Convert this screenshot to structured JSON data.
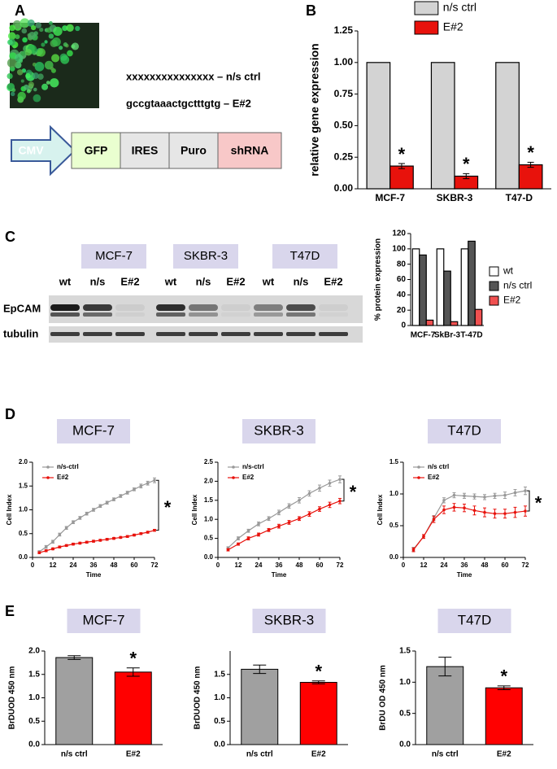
{
  "panel_labels": [
    "A",
    "B",
    "C",
    "D",
    "E"
  ],
  "construct": {
    "sequences": [
      "xxxxxxxxxxxxxxx – n/s ctrl",
      "gccgtaaactgctttgtg – E#2"
    ],
    "elements": [
      "CMV",
      "GFP",
      "IRES",
      "Puro",
      "shRNA"
    ]
  },
  "blot": {
    "cell_lines": [
      "MCF-7",
      "SKBR-3",
      "T47D"
    ],
    "lanes": [
      "wt",
      "n/s",
      "E#2"
    ],
    "proteins": [
      "EpCAM",
      "tubulin"
    ]
  },
  "chart_data": [
    {
      "type": "bar",
      "ylabel": "relative gene expression",
      "categories": [
        "MCF-7",
        "SKBR-3",
        "T47-D"
      ],
      "series": [
        {
          "name": "n/s ctrl",
          "color": "#d3d3d3",
          "values": [
            1,
            1,
            1
          ]
        },
        {
          "name": "E#2",
          "color": "#e8120c",
          "values": [
            0.18,
            0.1,
            0.19
          ],
          "errors": [
            0.02,
            0.02,
            0.02
          ]
        }
      ],
      "ylim": [
        0,
        1.25
      ],
      "yticks": [
        {
          "value": 0,
          "label": "0.00"
        },
        {
          "value": 0.25,
          "label": "0.25"
        },
        {
          "value": 0.5,
          "label": "0.50"
        },
        {
          "value": 0.75,
          "label": "0.75"
        },
        {
          "value": 1,
          "label": "1.00"
        },
        {
          "value": 1.25,
          "label": "1.25"
        }
      ],
      "legend": "top",
      "annotation": "*"
    },
    {
      "type": "bar",
      "ylabel": "% protein expression",
      "categories": [
        "MCF-7",
        "SkBr-3",
        "T-47D"
      ],
      "series": [
        {
          "name": "wt",
          "color": "#ffffff",
          "values": [
            100,
            100,
            100
          ]
        },
        {
          "name": "n/s ctrl",
          "color": "#555555",
          "values": [
            92,
            71,
            110
          ]
        },
        {
          "name": "E#2",
          "color": "#f05050",
          "values": [
            7,
            5,
            21
          ]
        }
      ],
      "ylim": [
        0,
        120
      ],
      "yticks": [
        0,
        20,
        40,
        60,
        80,
        100,
        120
      ],
      "legend": "right"
    },
    {
      "type": "line",
      "title": "MCF-7",
      "xlabel": "Time",
      "ylabel": "Cell Index",
      "x": [
        4,
        8,
        12,
        16,
        20,
        24,
        28,
        32,
        36,
        40,
        44,
        48,
        52,
        56,
        60,
        64,
        68,
        72
      ],
      "series": [
        {
          "name": "n/s-ctrl",
          "color": "#999999",
          "values": [
            0.12,
            0.22,
            0.33,
            0.48,
            0.62,
            0.74,
            0.83,
            0.92,
            1.0,
            1.08,
            1.15,
            1.22,
            1.29,
            1.36,
            1.43,
            1.5,
            1.56,
            1.62
          ],
          "errors": [
            0.02,
            0.03,
            0.03,
            0.03,
            0.03,
            0.03,
            0.03,
            0.03,
            0.03,
            0.03,
            0.03,
            0.03,
            0.03,
            0.03,
            0.03,
            0.04,
            0.04,
            0.05
          ]
        },
        {
          "name": "E#2",
          "color": "#e8120c",
          "values": [
            0.1,
            0.14,
            0.18,
            0.22,
            0.25,
            0.28,
            0.3,
            0.32,
            0.34,
            0.36,
            0.38,
            0.4,
            0.42,
            0.44,
            0.47,
            0.5,
            0.53,
            0.57
          ],
          "errors": [
            0.02,
            0.02,
            0.02,
            0.02,
            0.02,
            0.02,
            0.02,
            0.02,
            0.02,
            0.02,
            0.02,
            0.02,
            0.02,
            0.02,
            0.02,
            0.02,
            0.02,
            0.02
          ]
        }
      ],
      "xlim": [
        0,
        72
      ],
      "xticks": [
        0,
        12,
        24,
        36,
        48,
        60,
        72
      ],
      "ylim": [
        0,
        2
      ],
      "yticks": [
        {
          "value": 0,
          "label": "0.0"
        },
        {
          "value": 0.5,
          "label": "0.5"
        },
        {
          "value": 1,
          "label": "1.0"
        },
        {
          "value": 1.5,
          "label": "1.5"
        },
        {
          "value": 2,
          "label": "2.0"
        }
      ],
      "legend": "upper left",
      "annotation": "*"
    },
    {
      "type": "line",
      "title": "SKBR-3",
      "xlabel": "Time",
      "ylabel": "Cell Index",
      "x": [
        6,
        12,
        18,
        24,
        30,
        36,
        42,
        48,
        54,
        60,
        66,
        72
      ],
      "series": [
        {
          "name": "n/s-ctrl",
          "color": "#999999",
          "values": [
            0.25,
            0.5,
            0.7,
            0.88,
            1.02,
            1.18,
            1.35,
            1.5,
            1.68,
            1.82,
            1.95,
            2.05
          ],
          "errors": [
            0.03,
            0.04,
            0.04,
            0.05,
            0.05,
            0.06,
            0.06,
            0.07,
            0.07,
            0.08,
            0.08,
            0.09
          ]
        },
        {
          "name": "E#2",
          "color": "#e8120c",
          "values": [
            0.2,
            0.35,
            0.5,
            0.6,
            0.72,
            0.82,
            0.92,
            1.02,
            1.14,
            1.27,
            1.38,
            1.48
          ],
          "errors": [
            0.03,
            0.03,
            0.04,
            0.04,
            0.04,
            0.05,
            0.05,
            0.05,
            0.06,
            0.06,
            0.07,
            0.07
          ]
        }
      ],
      "xlim": [
        0,
        72
      ],
      "xticks": [
        0,
        12,
        24,
        36,
        48,
        60,
        72
      ],
      "ylim": [
        0,
        2.5
      ],
      "yticks": [
        {
          "value": 0,
          "label": "0.0"
        },
        {
          "value": 0.5,
          "label": "0.5"
        },
        {
          "value": 1,
          "label": "1.0"
        },
        {
          "value": 1.5,
          "label": "1.5"
        },
        {
          "value": 2,
          "label": "2.0"
        },
        {
          "value": 2.5,
          "label": "2.5"
        }
      ],
      "legend": "upper left",
      "annotation": "*"
    },
    {
      "type": "line",
      "title": "T47D",
      "xlabel": "Time",
      "ylabel": "Cell Index",
      "x": [
        6,
        12,
        18,
        24,
        30,
        36,
        42,
        48,
        54,
        60,
        66,
        72
      ],
      "series": [
        {
          "name": "n/s ctrl",
          "color": "#999999",
          "values": [
            0.13,
            0.33,
            0.62,
            0.9,
            0.98,
            0.97,
            0.96,
            0.95,
            0.97,
            0.98,
            1.02,
            1.05
          ],
          "errors": [
            0.03,
            0.03,
            0.04,
            0.04,
            0.04,
            0.04,
            0.04,
            0.04,
            0.04,
            0.05,
            0.05,
            0.06
          ]
        },
        {
          "name": "E#2",
          "color": "#e8120c",
          "values": [
            0.12,
            0.33,
            0.6,
            0.75,
            0.79,
            0.78,
            0.74,
            0.71,
            0.69,
            0.69,
            0.71,
            0.73
          ],
          "errors": [
            0.03,
            0.03,
            0.05,
            0.06,
            0.06,
            0.06,
            0.07,
            0.07,
            0.07,
            0.07,
            0.08,
            0.08
          ]
        }
      ],
      "xlim": [
        0,
        72
      ],
      "xticks": [
        0,
        12,
        24,
        36,
        48,
        60,
        72
      ],
      "ylim": [
        0,
        1.5
      ],
      "yticks": [
        {
          "value": 0,
          "label": "0.0"
        },
        {
          "value": 0.5,
          "label": "0.5"
        },
        {
          "value": 1,
          "label": "1.0"
        },
        {
          "value": 1.5,
          "label": "1.5"
        }
      ],
      "legend": "upper left",
      "annotation": "*"
    },
    {
      "type": "bar",
      "title": "MCF-7",
      "ylabel": "BrDUOD 450 nm",
      "categories": [
        "n/s ctrl",
        "E#2"
      ],
      "values": [
        1.86,
        1.55
      ],
      "errors": [
        0.04,
        0.09
      ],
      "colors": [
        "#a0a0a0",
        "#ff0000"
      ],
      "ylim": [
        0,
        2
      ],
      "yticks": [
        {
          "value": 0,
          "label": "0.0"
        },
        {
          "value": 0.5,
          "label": "0.5"
        },
        {
          "value": 1,
          "label": "1.0"
        },
        {
          "value": 1.5,
          "label": "1.5"
        },
        {
          "value": 2,
          "label": "2.0"
        }
      ],
      "annotation": "*"
    },
    {
      "type": "bar",
      "title": "SKBR-3",
      "ylabel": "BrDUOD 450 nm",
      "categories": [
        "n/s ctrl",
        "E#2"
      ],
      "values": [
        1.61,
        1.33
      ],
      "errors": [
        0.09,
        0.03
      ],
      "colors": [
        "#a0a0a0",
        "#ff0000"
      ],
      "ylim": [
        0,
        2
      ],
      "yticks": [
        {
          "value": 0,
          "label": "0.0"
        },
        {
          "value": 0.5,
          "label": "0.5"
        },
        {
          "value": 1,
          "label": "1.0"
        },
        {
          "value": 1.5,
          "label": "1.5"
        }
      ],
      "annotation": "*"
    },
    {
      "type": "bar",
      "title": "T47D",
      "ylabel": "BrDU OD 450 nm",
      "categories": [
        "n/s ctrl",
        "E#2"
      ],
      "values": [
        1.25,
        0.91
      ],
      "errors": [
        0.15,
        0.03
      ],
      "colors": [
        "#a0a0a0",
        "#ff0000"
      ],
      "ylim": [
        0,
        1.5
      ],
      "yticks": [
        {
          "value": 0,
          "label": "0.0"
        },
        {
          "value": 0.5,
          "label": "0.5"
        },
        {
          "value": 1,
          "label": "1.0"
        },
        {
          "value": 1.5,
          "label": "1.5"
        }
      ],
      "annotation": "*"
    }
  ]
}
